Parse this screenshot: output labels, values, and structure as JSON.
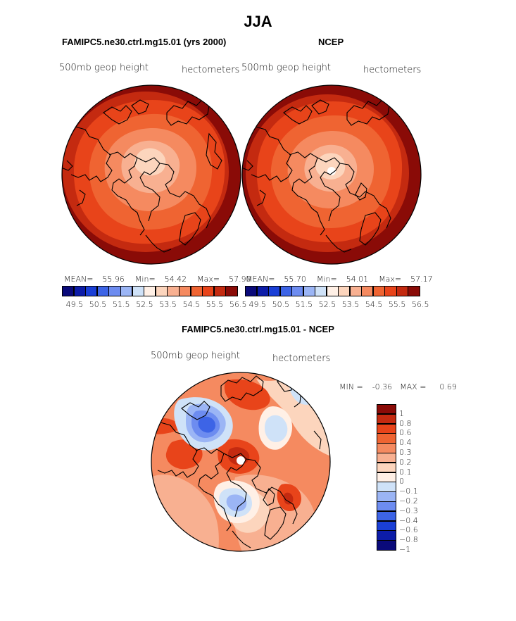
{
  "page_title": "JJA",
  "colors": {
    "diverging": [
      "#0a0a7a",
      "#0c1ca8",
      "#1a3fd6",
      "#3d64e6",
      "#6d8cf0",
      "#9bb5f5",
      "#cfe2f8",
      "#fff0e6",
      "#fcd5bd",
      "#f8b091",
      "#f58a60",
      "#ef6432",
      "#e8441a",
      "#c42a10",
      "#8a0b07"
    ],
    "absolute_bar": [
      "#0a0a7a",
      "#0c1ca8",
      "#1a3fd6",
      "#3d64e6",
      "#6d8cf0",
      "#9bb5f5",
      "#cfe2f8",
      "#fff0e6",
      "#fcd5bd",
      "#f8b091",
      "#f58a60",
      "#ef6432",
      "#e8441a",
      "#c42a10",
      "#8a0b07"
    ]
  },
  "chart_data": [
    {
      "type": "heatmap",
      "title": "FAMIPC5.ne30.ctrl.mg15.01 (yrs 2000)",
      "variable": "500mb geop height",
      "units": "hectometers",
      "stats": {
        "mean_label": "MEAN=",
        "mean": "55.96",
        "min_label": "Min=",
        "min": "54.42",
        "max_label": "Max=",
        "max": "57.90"
      },
      "colorbar_ticks": [
        "49.5",
        "50.5",
        "51.5",
        "52.5",
        "53.5",
        "54.5",
        "55.5",
        "56.5"
      ]
    },
    {
      "type": "heatmap",
      "title": "NCEP",
      "variable": "500mb geop height",
      "units": "hectometers",
      "stats": {
        "mean_label": "MEAN=",
        "mean": "55.70",
        "min_label": "Min=",
        "min": "54.01",
        "max_label": "Max=",
        "max": "57.17"
      },
      "colorbar_ticks": [
        "49.5",
        "50.5",
        "51.5",
        "52.5",
        "53.5",
        "54.5",
        "55.5",
        "56.5"
      ]
    },
    {
      "type": "heatmap",
      "title": "FAMIPC5.ne30.ctrl.mg15.01 - NCEP",
      "variable": "500mb geop height",
      "units": "hectometers",
      "stats": {
        "min_label": "MIN =",
        "min": "-0.36",
        "max_label": "MAX =",
        "max": "0.69"
      },
      "colorbar_levels": [
        "1",
        "0.8",
        "0.6",
        "0.4",
        "0.3",
        "0.2",
        "0.1",
        "0",
        "−0.1",
        "−0.2",
        "−0.3",
        "−0.4",
        "−0.6",
        "−0.8",
        "−1"
      ]
    }
  ]
}
